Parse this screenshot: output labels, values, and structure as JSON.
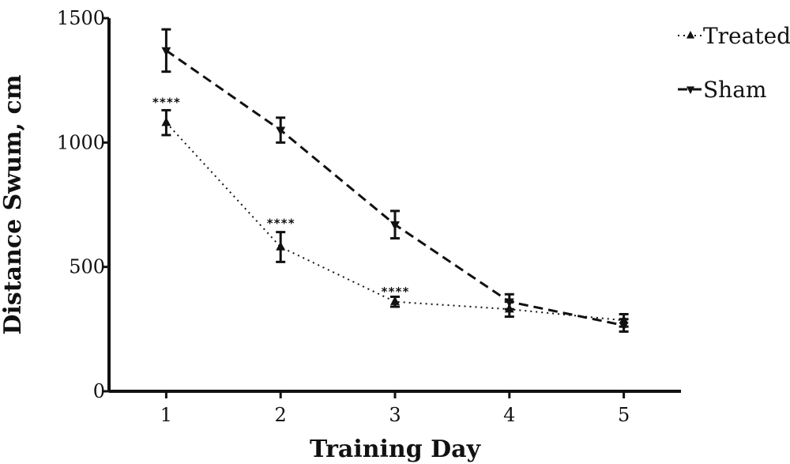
{
  "chart_data": {
    "type": "line",
    "xlabel": "Training Day",
    "ylabel": "Distance Swum, cm",
    "x": [
      1,
      2,
      3,
      4,
      5
    ],
    "x_tick_labels": [
      "1",
      "2",
      "3",
      "4",
      "5"
    ],
    "xlim": [
      0.5,
      5.5
    ],
    "ylim": [
      0,
      1500
    ],
    "y_ticks": [
      0,
      500,
      1000,
      1500
    ],
    "y_tick_labels": [
      "0",
      "500",
      "1000",
      "1500"
    ],
    "grid": false,
    "legend_position": "top-right",
    "series": [
      {
        "name": "Treated",
        "marker": "triangle-up",
        "line_style": "dotted",
        "color": "#111111",
        "values": [
          1080,
          580,
          360,
          330,
          285
        ],
        "error": [
          50,
          60,
          20,
          30,
          25
        ]
      },
      {
        "name": "Sham",
        "marker": "triangle-down",
        "line_style": "dashed",
        "color": "#111111",
        "values": [
          1370,
          1050,
          670,
          360,
          265
        ],
        "error": [
          85,
          50,
          55,
          30,
          25
        ]
      }
    ],
    "annotations": [
      {
        "x": 1,
        "y": 1145,
        "text": "****"
      },
      {
        "x": 2,
        "y": 660,
        "text": "****"
      },
      {
        "x": 3,
        "y": 385,
        "text": "****"
      }
    ]
  }
}
